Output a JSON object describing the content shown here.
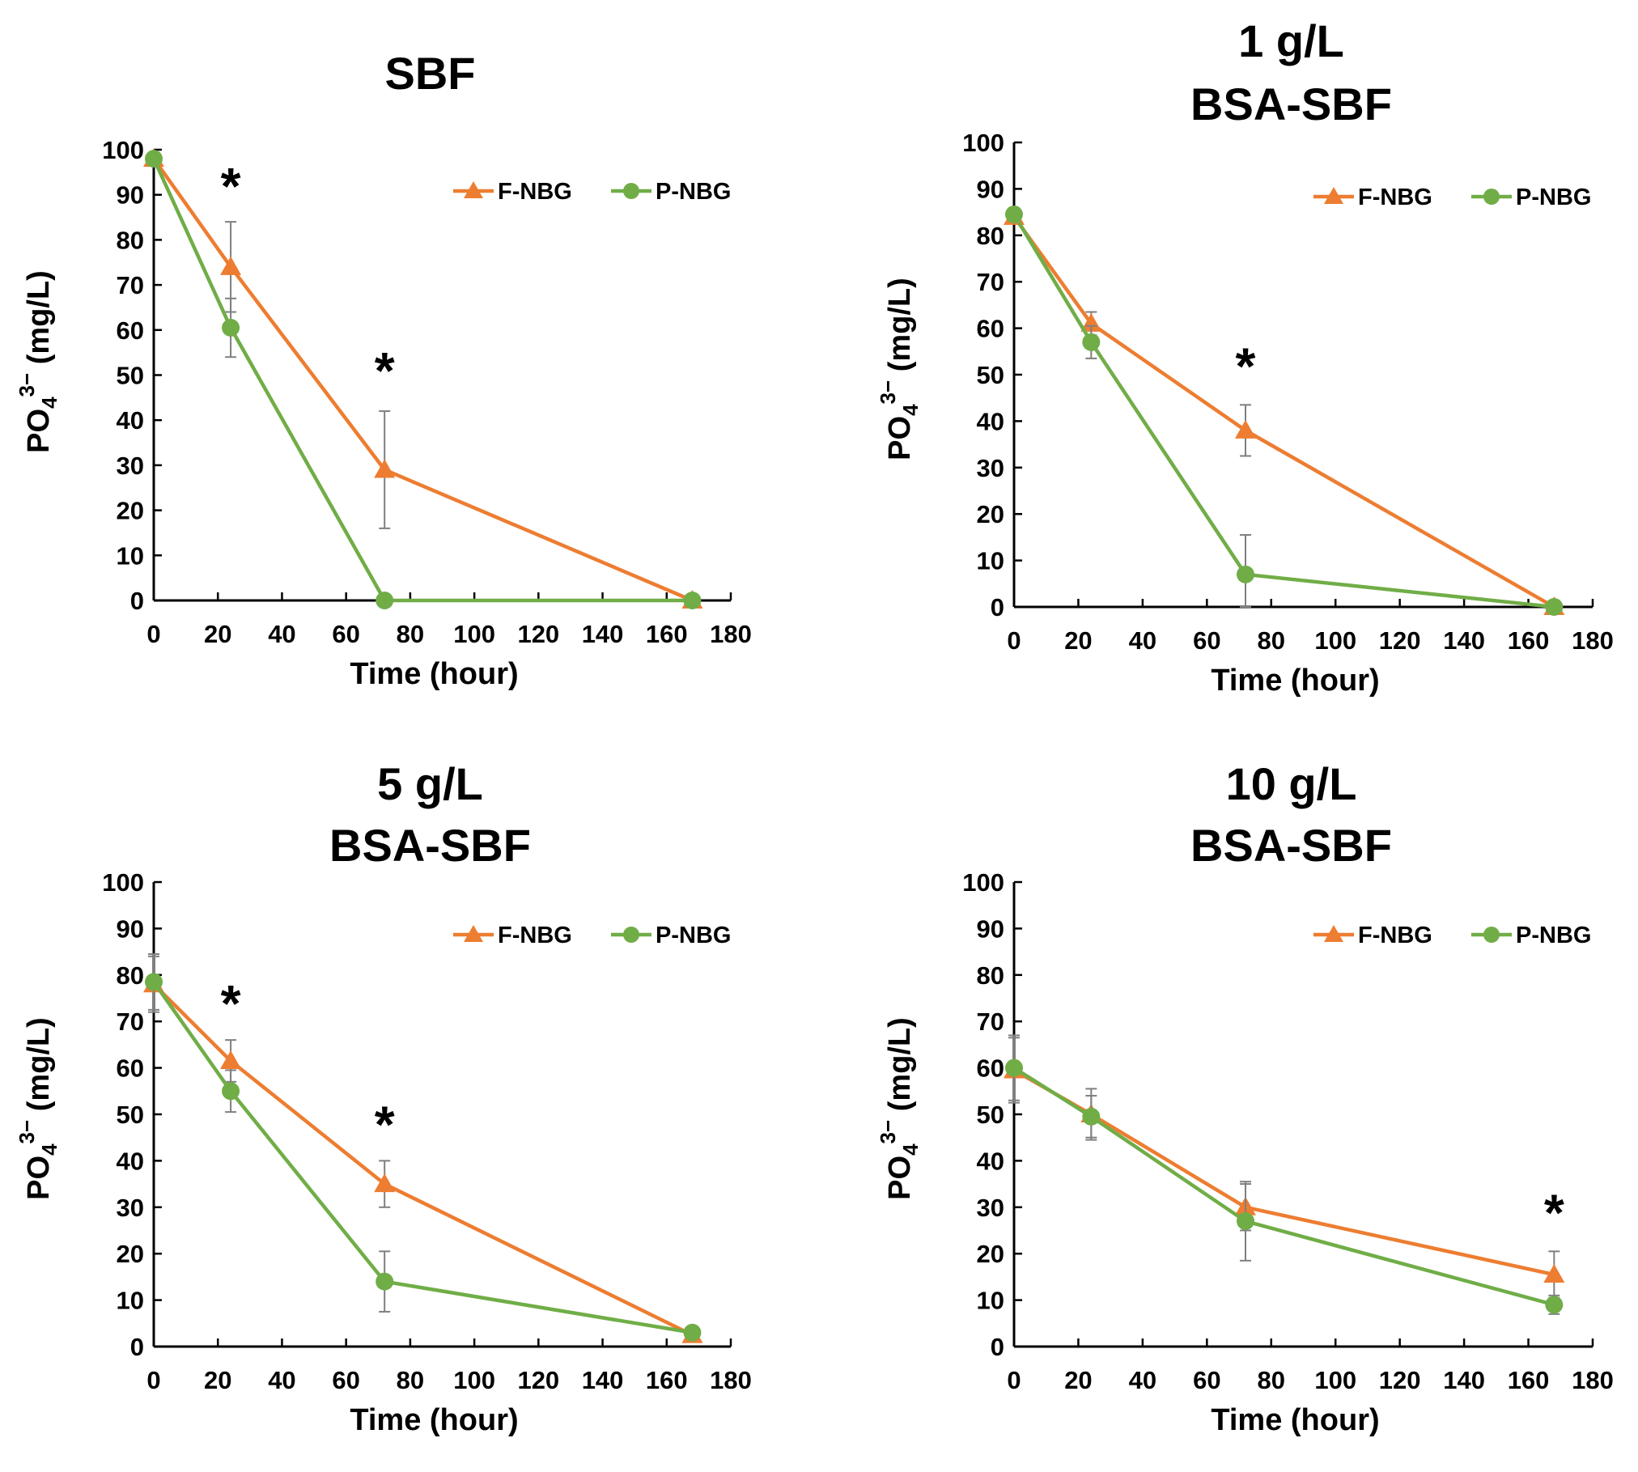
{
  "colors": {
    "f_series": "#ED7D31",
    "p_series": "#70AD47",
    "axis": "#000000",
    "error_bar": "#7F7F7F"
  },
  "chart_data": [
    {
      "type": "line",
      "title": [
        "SBF"
      ],
      "xlabel": "Time (hour)",
      "ylabel": {
        "base": "PO",
        "sub": "4",
        "sup": "3−",
        "unit": " (mg/L)"
      },
      "xlim": [
        0,
        180
      ],
      "ylim": [
        0,
        100
      ],
      "xticks": [
        "0",
        "20",
        "40",
        "60",
        "80",
        "100",
        "120",
        "140",
        "160",
        "180"
      ],
      "yticks": [
        "0",
        "10",
        "20",
        "30",
        "40",
        "50",
        "60",
        "70",
        "80",
        "90",
        "100"
      ],
      "x": [
        0,
        24,
        72,
        168
      ],
      "series": [
        {
          "name": "F-NBG",
          "marker": "triangle",
          "values": [
            98,
            74,
            29,
            0
          ],
          "errors": [
            1,
            10,
            13,
            0
          ]
        },
        {
          "name": "P-NBG",
          "marker": "circle",
          "values": [
            98,
            60.5,
            0,
            0
          ],
          "errors": [
            1,
            6.5,
            0,
            0
          ]
        }
      ],
      "annotations": [
        {
          "text": "*",
          "x": 24,
          "y": 88
        },
        {
          "text": "*",
          "x": 72,
          "y": 47
        }
      ]
    },
    {
      "type": "line",
      "title": [
        "1 g/L",
        "BSA-SBF"
      ],
      "xlabel": "Time (hour)",
      "ylabel": {
        "base": "PO",
        "sub": "4",
        "sup": "3−",
        "unit": " (mg/L)"
      },
      "xlim": [
        0,
        180
      ],
      "ylim": [
        0,
        100
      ],
      "xticks": [
        "0",
        "20",
        "40",
        "60",
        "80",
        "100",
        "120",
        "140",
        "160",
        "180"
      ],
      "yticks": [
        "0",
        "10",
        "20",
        "30",
        "40",
        "50",
        "60",
        "70",
        "80",
        "90",
        "100"
      ],
      "x": [
        0,
        24,
        72,
        168
      ],
      "series": [
        {
          "name": "F-NBG",
          "marker": "triangle",
          "values": [
            84,
            61,
            38,
            0
          ],
          "errors": [
            1,
            2.5,
            5.5,
            0
          ]
        },
        {
          "name": "P-NBG",
          "marker": "circle",
          "values": [
            84.5,
            57,
            7,
            0
          ],
          "errors": [
            1,
            3.5,
            8.5,
            0
          ]
        }
      ],
      "annotations": [
        {
          "text": "*",
          "x": 72,
          "y": 48
        }
      ]
    },
    {
      "type": "line",
      "title": [
        "5 g/L",
        "BSA-SBF"
      ],
      "xlabel": "Time (hour)",
      "ylabel": {
        "base": "PO",
        "sub": "4",
        "sup": "3−",
        "unit": " (mg/L)"
      },
      "xlim": [
        0,
        180
      ],
      "ylim": [
        0,
        100
      ],
      "xticks": [
        "0",
        "20",
        "40",
        "60",
        "80",
        "100",
        "120",
        "140",
        "160",
        "180"
      ],
      "yticks": [
        "0",
        "10",
        "20",
        "30",
        "40",
        "50",
        "60",
        "70",
        "80",
        "90",
        "100"
      ],
      "x": [
        0,
        24,
        72,
        168
      ],
      "series": [
        {
          "name": "F-NBG",
          "marker": "triangle",
          "values": [
            78,
            61.5,
            35,
            2.5
          ],
          "errors": [
            6,
            4.5,
            5,
            0.5
          ]
        },
        {
          "name": "P-NBG",
          "marker": "circle",
          "values": [
            78.5,
            55,
            14,
            3
          ],
          "errors": [
            6,
            4.5,
            6.5,
            0.5
          ]
        }
      ],
      "annotations": [
        {
          "text": "*",
          "x": 24,
          "y": 70
        },
        {
          "text": "*",
          "x": 72,
          "y": 44
        }
      ]
    },
    {
      "type": "line",
      "title": [
        "10 g/L",
        "BSA-SBF"
      ],
      "xlabel": "Time (hour)",
      "ylabel": {
        "base": "PO",
        "sub": "4",
        "sup": "3−",
        "unit": " (mg/L)"
      },
      "xlim": [
        0,
        180
      ],
      "ylim": [
        0,
        100
      ],
      "xticks": [
        "0",
        "20",
        "40",
        "60",
        "80",
        "100",
        "120",
        "140",
        "160",
        "180"
      ],
      "yticks": [
        "0",
        "10",
        "20",
        "30",
        "40",
        "50",
        "60",
        "70",
        "80",
        "90",
        "100"
      ],
      "x": [
        0,
        24,
        72,
        168
      ],
      "series": [
        {
          "name": "F-NBG",
          "marker": "triangle",
          "values": [
            59.5,
            50,
            30,
            15.5
          ],
          "errors": [
            7,
            5.5,
            5,
            5
          ]
        },
        {
          "name": "P-NBG",
          "marker": "circle",
          "values": [
            60,
            49.5,
            27,
            9
          ],
          "errors": [
            7,
            4.5,
            8.5,
            2
          ]
        }
      ],
      "annotations": [
        {
          "text": "*",
          "x": 168,
          "y": 25
        }
      ]
    }
  ]
}
